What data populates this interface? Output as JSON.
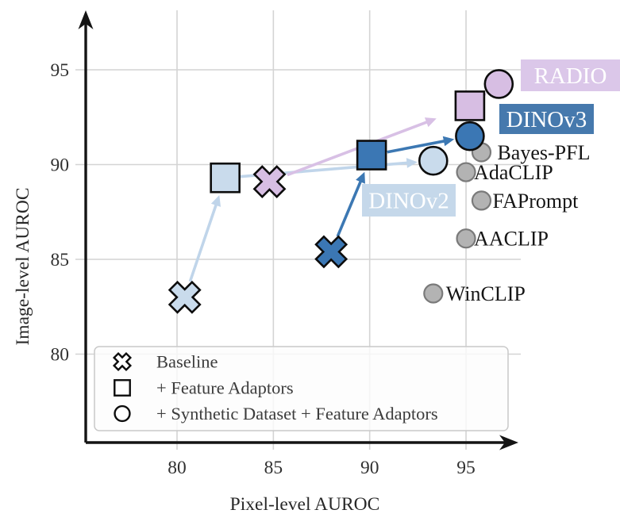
{
  "figure": {
    "background": "#ffffff"
  },
  "chart_data": {
    "type": "scatter",
    "title": "",
    "xlabel": "Pixel-level AUROC",
    "ylabel": "Image-level AUROC",
    "xlim": [
      75.3,
      97.8
    ],
    "ylim": [
      75.4,
      98.1
    ],
    "x_ticks": [
      80,
      85,
      90,
      95
    ],
    "y_ticks": [
      80,
      85,
      90,
      95
    ],
    "grid": true,
    "colors": {
      "grid": "#d4d4d4",
      "axis": "#141414",
      "tick_text": "#303030",
      "baseline_fill": "#b3b3b3",
      "baseline_stroke": "#7a7a7a",
      "marker_outline": "#0d0d0d",
      "legend_border": "#c9c9c9",
      "legend_bg": "rgba(253,253,253,0.8)"
    },
    "series": [
      {
        "name": "DINOv2",
        "color": "#c9dbec",
        "arrow_color": "#c0d5ea",
        "label_bg": "#c5d8ea",
        "label_color": "#ffffff",
        "points": [
          {
            "stage": "Baseline",
            "marker": "x",
            "x": 80.4,
            "y": 83.0
          },
          {
            "stage": "+ Feature Adaptors",
            "marker": "square",
            "x": 82.5,
            "y": 89.3
          },
          {
            "stage": "+ Synthetic Dataset + Feature Adaptors",
            "marker": "circle",
            "x": 93.3,
            "y": 90.2
          }
        ]
      },
      {
        "name": "RADIO",
        "color": "#d7bee3",
        "arrow_color": "#d8c0e5",
        "label_bg": "#dbc7e9",
        "label_color": "#ffffff",
        "points": [
          {
            "stage": "Baseline",
            "marker": "x",
            "x": 84.8,
            "y": 89.1
          },
          {
            "stage": "+ Feature Adaptors",
            "marker": "square",
            "x": 95.2,
            "y": 93.1
          },
          {
            "stage": "+ Synthetic Dataset + Feature Adaptors",
            "marker": "circle",
            "x": 96.7,
            "y": 94.25
          }
        ]
      },
      {
        "name": "DINOv3",
        "color": "#3b77b4",
        "arrow_color": "#3c78b3",
        "label_bg": "#4679ad",
        "label_color": "#ffffff",
        "points": [
          {
            "stage": "Baseline",
            "marker": "x",
            "x": 88.0,
            "y": 85.4
          },
          {
            "stage": "+ Feature Adaptors",
            "marker": "square",
            "x": 90.1,
            "y": 90.5
          },
          {
            "stage": "+ Synthetic Dataset + Feature Adaptors",
            "marker": "circle",
            "x": 95.2,
            "y": 91.5
          }
        ]
      }
    ],
    "baseline_methods": [
      {
        "name": "Bayes-PFL",
        "x": 95.8,
        "y": 90.65
      },
      {
        "name": "AdaCLIP",
        "x": 95.0,
        "y": 89.6
      },
      {
        "name": "FAPrompt",
        "x": 95.8,
        "y": 88.1
      },
      {
        "name": "AACLIP",
        "x": 95.0,
        "y": 86.1
      },
      {
        "name": "WinCLIP",
        "x": 93.3,
        "y": 83.2
      }
    ],
    "legend": {
      "position": "lower left",
      "items": [
        {
          "marker": "x",
          "label": "Baseline"
        },
        {
          "marker": "square",
          "label": "+ Feature Adaptors"
        },
        {
          "marker": "circle",
          "label": "+ Synthetic Dataset + Feature Adaptors"
        }
      ]
    }
  }
}
